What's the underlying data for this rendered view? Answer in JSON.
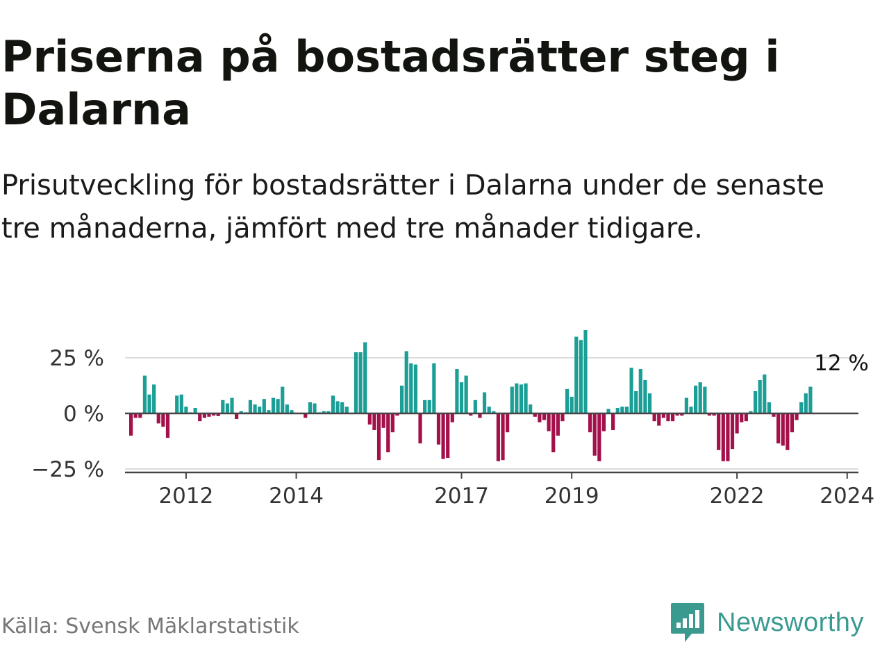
{
  "title": "Priserna på bostadsrätter steg i Dalarna",
  "subtitle": "Prisutveckling för bostadsrätter i Dalarna under de senaste tre månaderna, jämfört med tre månader tidigare.",
  "source": "Källa: Svensk Mäklarstatistik",
  "brand": "Newsworthy",
  "colors": {
    "positive": "#1a9e96",
    "negative": "#a3104a",
    "grid": "#dcdcdc",
    "axis": "#444444",
    "brand": "#3a9a8f"
  },
  "chart_data": {
    "type": "bar",
    "title": "Priserna på bostadsrätter steg i Dalarna",
    "xlabel": "",
    "ylabel": "",
    "x_start": "2011-01",
    "x_unit": "month",
    "ylim": [
      -25,
      37
    ],
    "yticks": [
      -25,
      0,
      25
    ],
    "ytick_labels": [
      "−25 %",
      "0 %",
      "25 %"
    ],
    "xtick_years": [
      2012,
      2014,
      2017,
      2019,
      2022,
      2024
    ],
    "last_value_label": "12 %",
    "values": [
      -10,
      -2,
      -2,
      17,
      8.5,
      13,
      -4.5,
      -6,
      -11,
      0,
      8,
      8.5,
      3,
      0.5,
      2.5,
      -3.5,
      -2,
      -1.5,
      -1,
      -1.2,
      6,
      4.5,
      7,
      -2.5,
      1,
      0.5,
      6,
      4,
      3,
      6.5,
      1.5,
      7,
      6.5,
      12,
      4,
      1.5,
      0,
      0,
      -2,
      5,
      4.5,
      0.5,
      1,
      1,
      8,
      5.5,
      5,
      3,
      0,
      27.5,
      27.5,
      32,
      -5,
      -7.5,
      -21,
      -6.5,
      -17.5,
      -8.5,
      -1,
      12.5,
      28,
      22.5,
      22,
      -13.5,
      6,
      6,
      22.5,
      -14,
      -20.5,
      -20,
      -4,
      20,
      14,
      17,
      -1,
      6,
      -2,
      9.5,
      3,
      1,
      -21.5,
      -21,
      -8.5,
      12,
      13.5,
      13,
      13.5,
      4,
      -1.5,
      -4,
      -3,
      -8,
      -17.5,
      -10,
      -3.5,
      11,
      7.5,
      34.5,
      33,
      37.5,
      -8.5,
      -19,
      -21.5,
      -8,
      2,
      -7.5,
      2.5,
      3,
      3,
      20.5,
      10,
      20,
      15,
      9,
      -3.5,
      -5.5,
      -2,
      -3.5,
      -3.5,
      -1,
      -1,
      7,
      3,
      12.5,
      14,
      12,
      -1,
      -1,
      -16.5,
      -21.5,
      -21.5,
      -16,
      -9,
      -4,
      -3.5,
      1,
      10,
      15,
      17.5,
      5,
      -1.5,
      -13.5,
      -14.5,
      -16.5,
      -8.5,
      -3,
      5,
      9,
      12
    ]
  }
}
